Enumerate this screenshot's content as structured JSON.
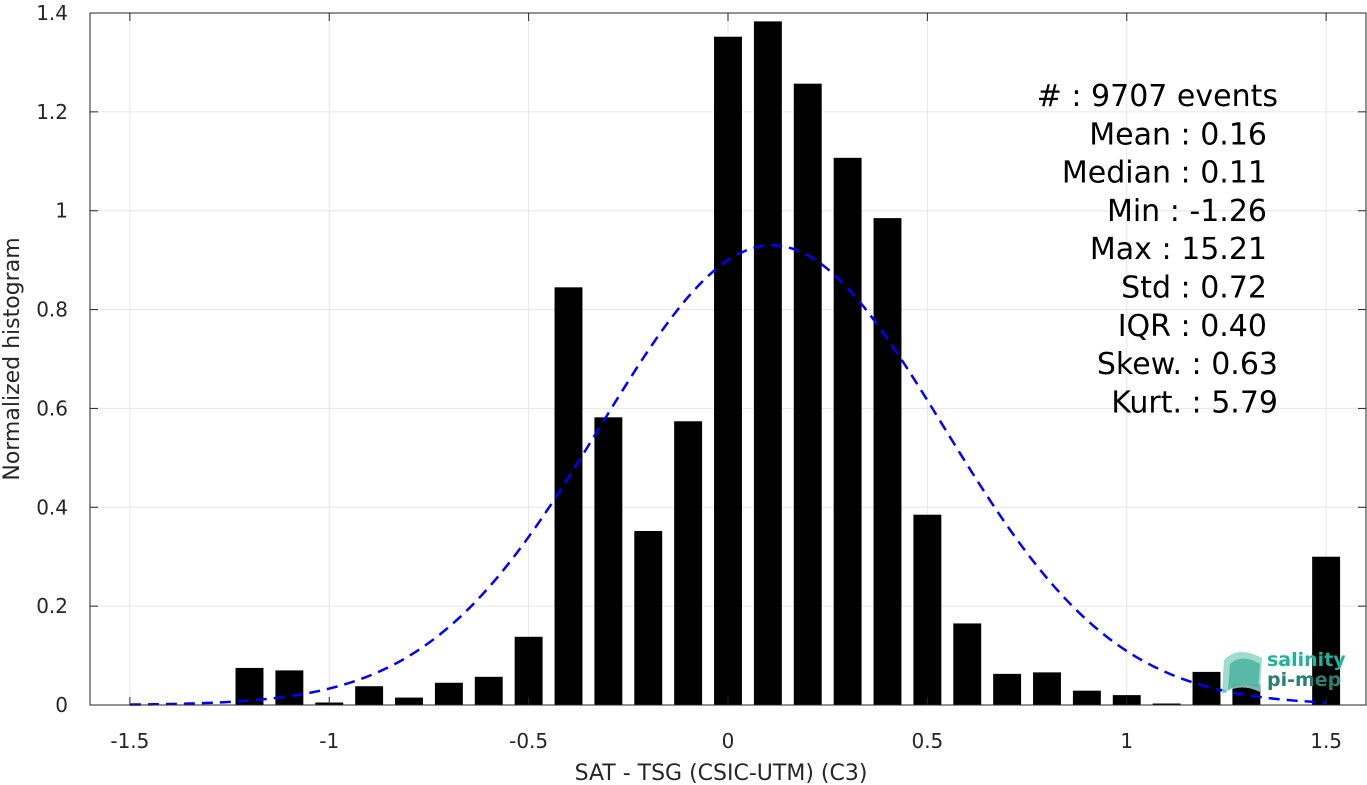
{
  "chart_data": {
    "type": "bar",
    "title": "",
    "xlabel": "SAT - TSG (CSIC-UTM) (C3)",
    "ylabel": "Normalized histogram",
    "xlim": [
      -1.6,
      1.6
    ],
    "ylim": [
      0,
      1.4
    ],
    "grid": true,
    "bar_color": "#000000",
    "curve_color": "#0000ff",
    "x_ticks": [
      -1.5,
      -1,
      -0.5,
      0,
      0.5,
      1,
      1.5
    ],
    "x_tick_labels": [
      "-1.5",
      "-1",
      "-0.5",
      "0",
      "0.5",
      "1",
      "1.5"
    ],
    "y_ticks": [
      0,
      0.2,
      0.4,
      0.6,
      0.8,
      1,
      1.2,
      1.4
    ],
    "y_tick_labels": [
      "0",
      "0.2",
      "0.4",
      "0.6",
      "0.8",
      "1",
      "1.2",
      "1.4"
    ],
    "bar_width": 0.07,
    "bins": [
      {
        "x": -1.5,
        "y": 0.0
      },
      {
        "x": -1.4,
        "y": 0.0
      },
      {
        "x": -1.3,
        "y": 0.0
      },
      {
        "x": -1.2,
        "y": 0.075
      },
      {
        "x": -1.1,
        "y": 0.07
      },
      {
        "x": -1.0,
        "y": 0.005
      },
      {
        "x": -0.9,
        "y": 0.038
      },
      {
        "x": -0.8,
        "y": 0.015
      },
      {
        "x": -0.7,
        "y": 0.045
      },
      {
        "x": -0.6,
        "y": 0.057
      },
      {
        "x": -0.5,
        "y": 0.138
      },
      {
        "x": -0.4,
        "y": 0.845
      },
      {
        "x": -0.3,
        "y": 0.582
      },
      {
        "x": -0.2,
        "y": 0.352
      },
      {
        "x": -0.1,
        "y": 0.574
      },
      {
        "x": 0.0,
        "y": 1.352
      },
      {
        "x": 0.1,
        "y": 1.383
      },
      {
        "x": 0.2,
        "y": 1.257
      },
      {
        "x": 0.3,
        "y": 1.107
      },
      {
        "x": 0.4,
        "y": 0.985
      },
      {
        "x": 0.5,
        "y": 0.385
      },
      {
        "x": 0.6,
        "y": 0.165
      },
      {
        "x": 0.7,
        "y": 0.063
      },
      {
        "x": 0.8,
        "y": 0.066
      },
      {
        "x": 0.9,
        "y": 0.029
      },
      {
        "x": 1.0,
        "y": 0.02
      },
      {
        "x": 1.1,
        "y": 0.003
      },
      {
        "x": 1.2,
        "y": 0.067
      },
      {
        "x": 1.3,
        "y": 0.042
      },
      {
        "x": 1.4,
        "y": 0.0
      },
      {
        "x": 1.5,
        "y": 0.3
      }
    ],
    "normal_fit": {
      "mean": 0.11,
      "std": 0.43,
      "peak": 0.93,
      "x_range": [
        -1.5,
        1.5
      ]
    }
  },
  "stats": [
    {
      "label": "#  : 9707 events"
    },
    {
      "label": "Mean : 0.16"
    },
    {
      "label": "Median : 0.11"
    },
    {
      "label": "Min : -1.26"
    },
    {
      "label": "Max : 15.21"
    },
    {
      "label": "Std : 0.72"
    },
    {
      "label": "IQR : 0.40"
    },
    {
      "label": "Skew. : 0.63"
    },
    {
      "label": "Kurt. : 5.79"
    }
  ],
  "logo": {
    "line1": "salinity",
    "line2": "pi-mep",
    "color1": "#1fb39a",
    "color2": "#2a7f74"
  }
}
